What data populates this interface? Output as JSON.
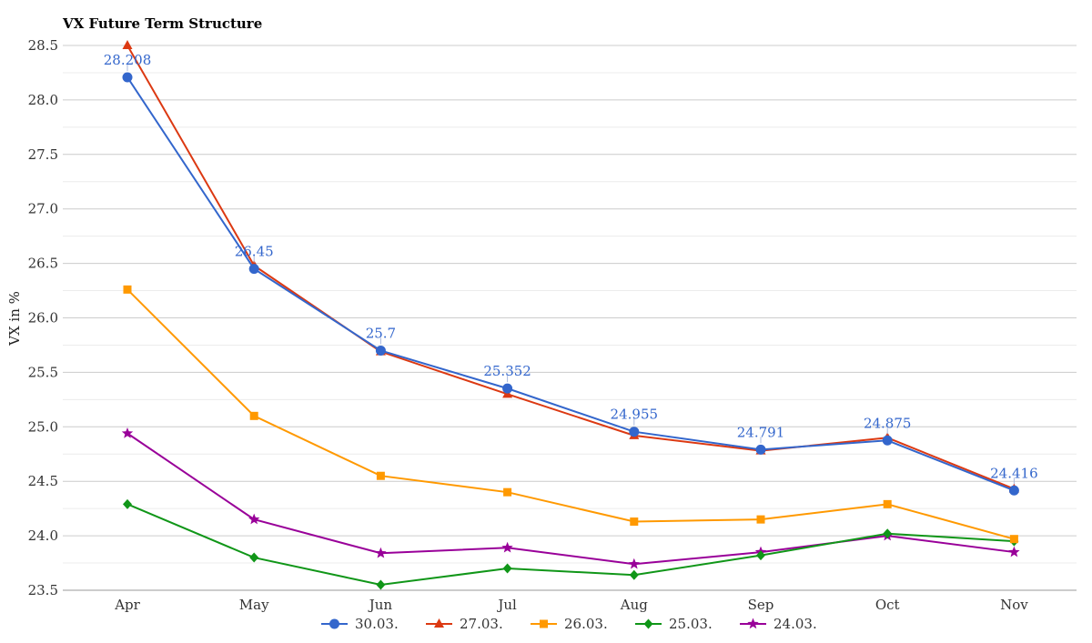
{
  "chart_data": {
    "type": "line",
    "title": "VX Future Term Structure",
    "xlabel": "",
    "ylabel": "VX in %",
    "categories": [
      "Apr",
      "May",
      "Jun",
      "Jul",
      "Aug",
      "Sep",
      "Oct",
      "Nov"
    ],
    "ylim": [
      23.5,
      28.5
    ],
    "yticks": [
      "23.5",
      "24.0",
      "24.5",
      "25.0",
      "25.5",
      "26.0",
      "26.5",
      "27.0",
      "27.5",
      "28.0",
      "28.5"
    ],
    "grid": true,
    "legend_position": "bottom",
    "series": [
      {
        "name": "30.03.",
        "color": "#3366cc",
        "marker": "circle",
        "values": [
          28.208,
          26.45,
          25.7,
          25.352,
          24.955,
          24.791,
          24.875,
          24.416
        ],
        "data_labels": [
          "28.208",
          "26.45",
          "25.7",
          "25.352",
          "24.955",
          "24.791",
          "24.875",
          "24.416"
        ]
      },
      {
        "name": "27.03.",
        "color": "#dc3912",
        "marker": "triangle",
        "values": [
          28.5,
          26.48,
          25.69,
          25.3,
          24.92,
          24.78,
          24.9,
          24.43
        ]
      },
      {
        "name": "26.03.",
        "color": "#ff9900",
        "marker": "square",
        "values": [
          26.26,
          25.1,
          24.55,
          24.4,
          24.13,
          24.15,
          24.29,
          23.97
        ]
      },
      {
        "name": "25.03.",
        "color": "#109618",
        "marker": "diamond",
        "values": [
          24.29,
          23.8,
          23.55,
          23.7,
          23.64,
          23.82,
          24.02,
          23.95
        ]
      },
      {
        "name": "24.03.",
        "color": "#990099",
        "marker": "star",
        "values": [
          24.94,
          24.15,
          23.84,
          23.89,
          23.74,
          23.85,
          24.0,
          23.85
        ]
      }
    ]
  }
}
